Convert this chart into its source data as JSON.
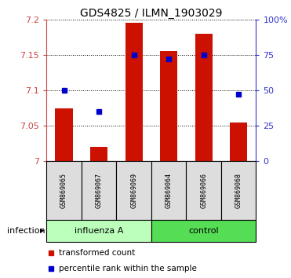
{
  "title": "GDS4825 / ILMN_1903029",
  "samples": [
    "GSM869065",
    "GSM869067",
    "GSM869069",
    "GSM869064",
    "GSM869066",
    "GSM869068"
  ],
  "group_labels": [
    "influenza A",
    "control"
  ],
  "group_colors": [
    "#BBFFBB",
    "#55DD55"
  ],
  "bar_values": [
    7.075,
    7.02,
    7.195,
    7.155,
    7.18,
    7.055
  ],
  "bar_base": 7.0,
  "blue_percentiles": [
    50,
    35,
    75,
    72,
    75,
    47
  ],
  "ylim": [
    7.0,
    7.2
  ],
  "y2lim": [
    0,
    100
  ],
  "yticks": [
    7.0,
    7.05,
    7.1,
    7.15,
    7.2
  ],
  "ytick_labels": [
    "7",
    "7.05",
    "7.1",
    "7.15",
    "7.2"
  ],
  "y2ticks": [
    0,
    25,
    50,
    75,
    100
  ],
  "y2ticklabels": [
    "0",
    "25",
    "50",
    "75",
    "100%"
  ],
  "bar_color": "#CC1100",
  "blue_color": "#0000CC",
  "red_tick_color": "#CC4444",
  "blue_tick_color": "#3333CC",
  "legend_red_label": "transformed count",
  "legend_blue_label": "percentile rank within the sample",
  "group_row_label": "infection",
  "figsize": [
    3.71,
    3.54
  ],
  "dpi": 100
}
